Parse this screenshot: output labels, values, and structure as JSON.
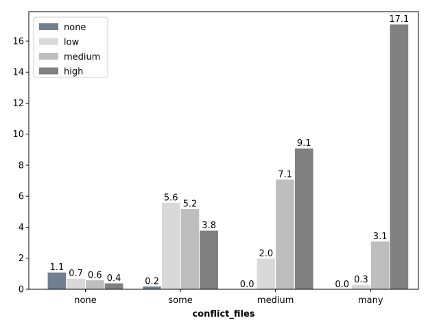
{
  "chart_data": {
    "type": "bar",
    "title": "",
    "xlabel": "conflict_files",
    "ylabel": "",
    "categories": [
      "none",
      "some",
      "medium",
      "many"
    ],
    "series": [
      {
        "name": "none",
        "color": "#708090",
        "values": [
          1.1,
          0.2,
          0.0,
          0.0
        ]
      },
      {
        "name": "low",
        "color": "#d9d9d9",
        "values": [
          0.7,
          5.6,
          2.0,
          0.3
        ]
      },
      {
        "name": "medium",
        "color": "#bebebe",
        "values": [
          0.6,
          5.2,
          7.1,
          3.1
        ]
      },
      {
        "name": "high",
        "color": "#808080",
        "values": [
          0.4,
          3.8,
          9.1,
          17.1
        ]
      }
    ],
    "ylim": [
      0,
      17.9
    ],
    "yticks": [
      0,
      2,
      4,
      6,
      8,
      10,
      12,
      14,
      16
    ],
    "grid": false,
    "legend_position": "top-left",
    "value_labels": true
  }
}
